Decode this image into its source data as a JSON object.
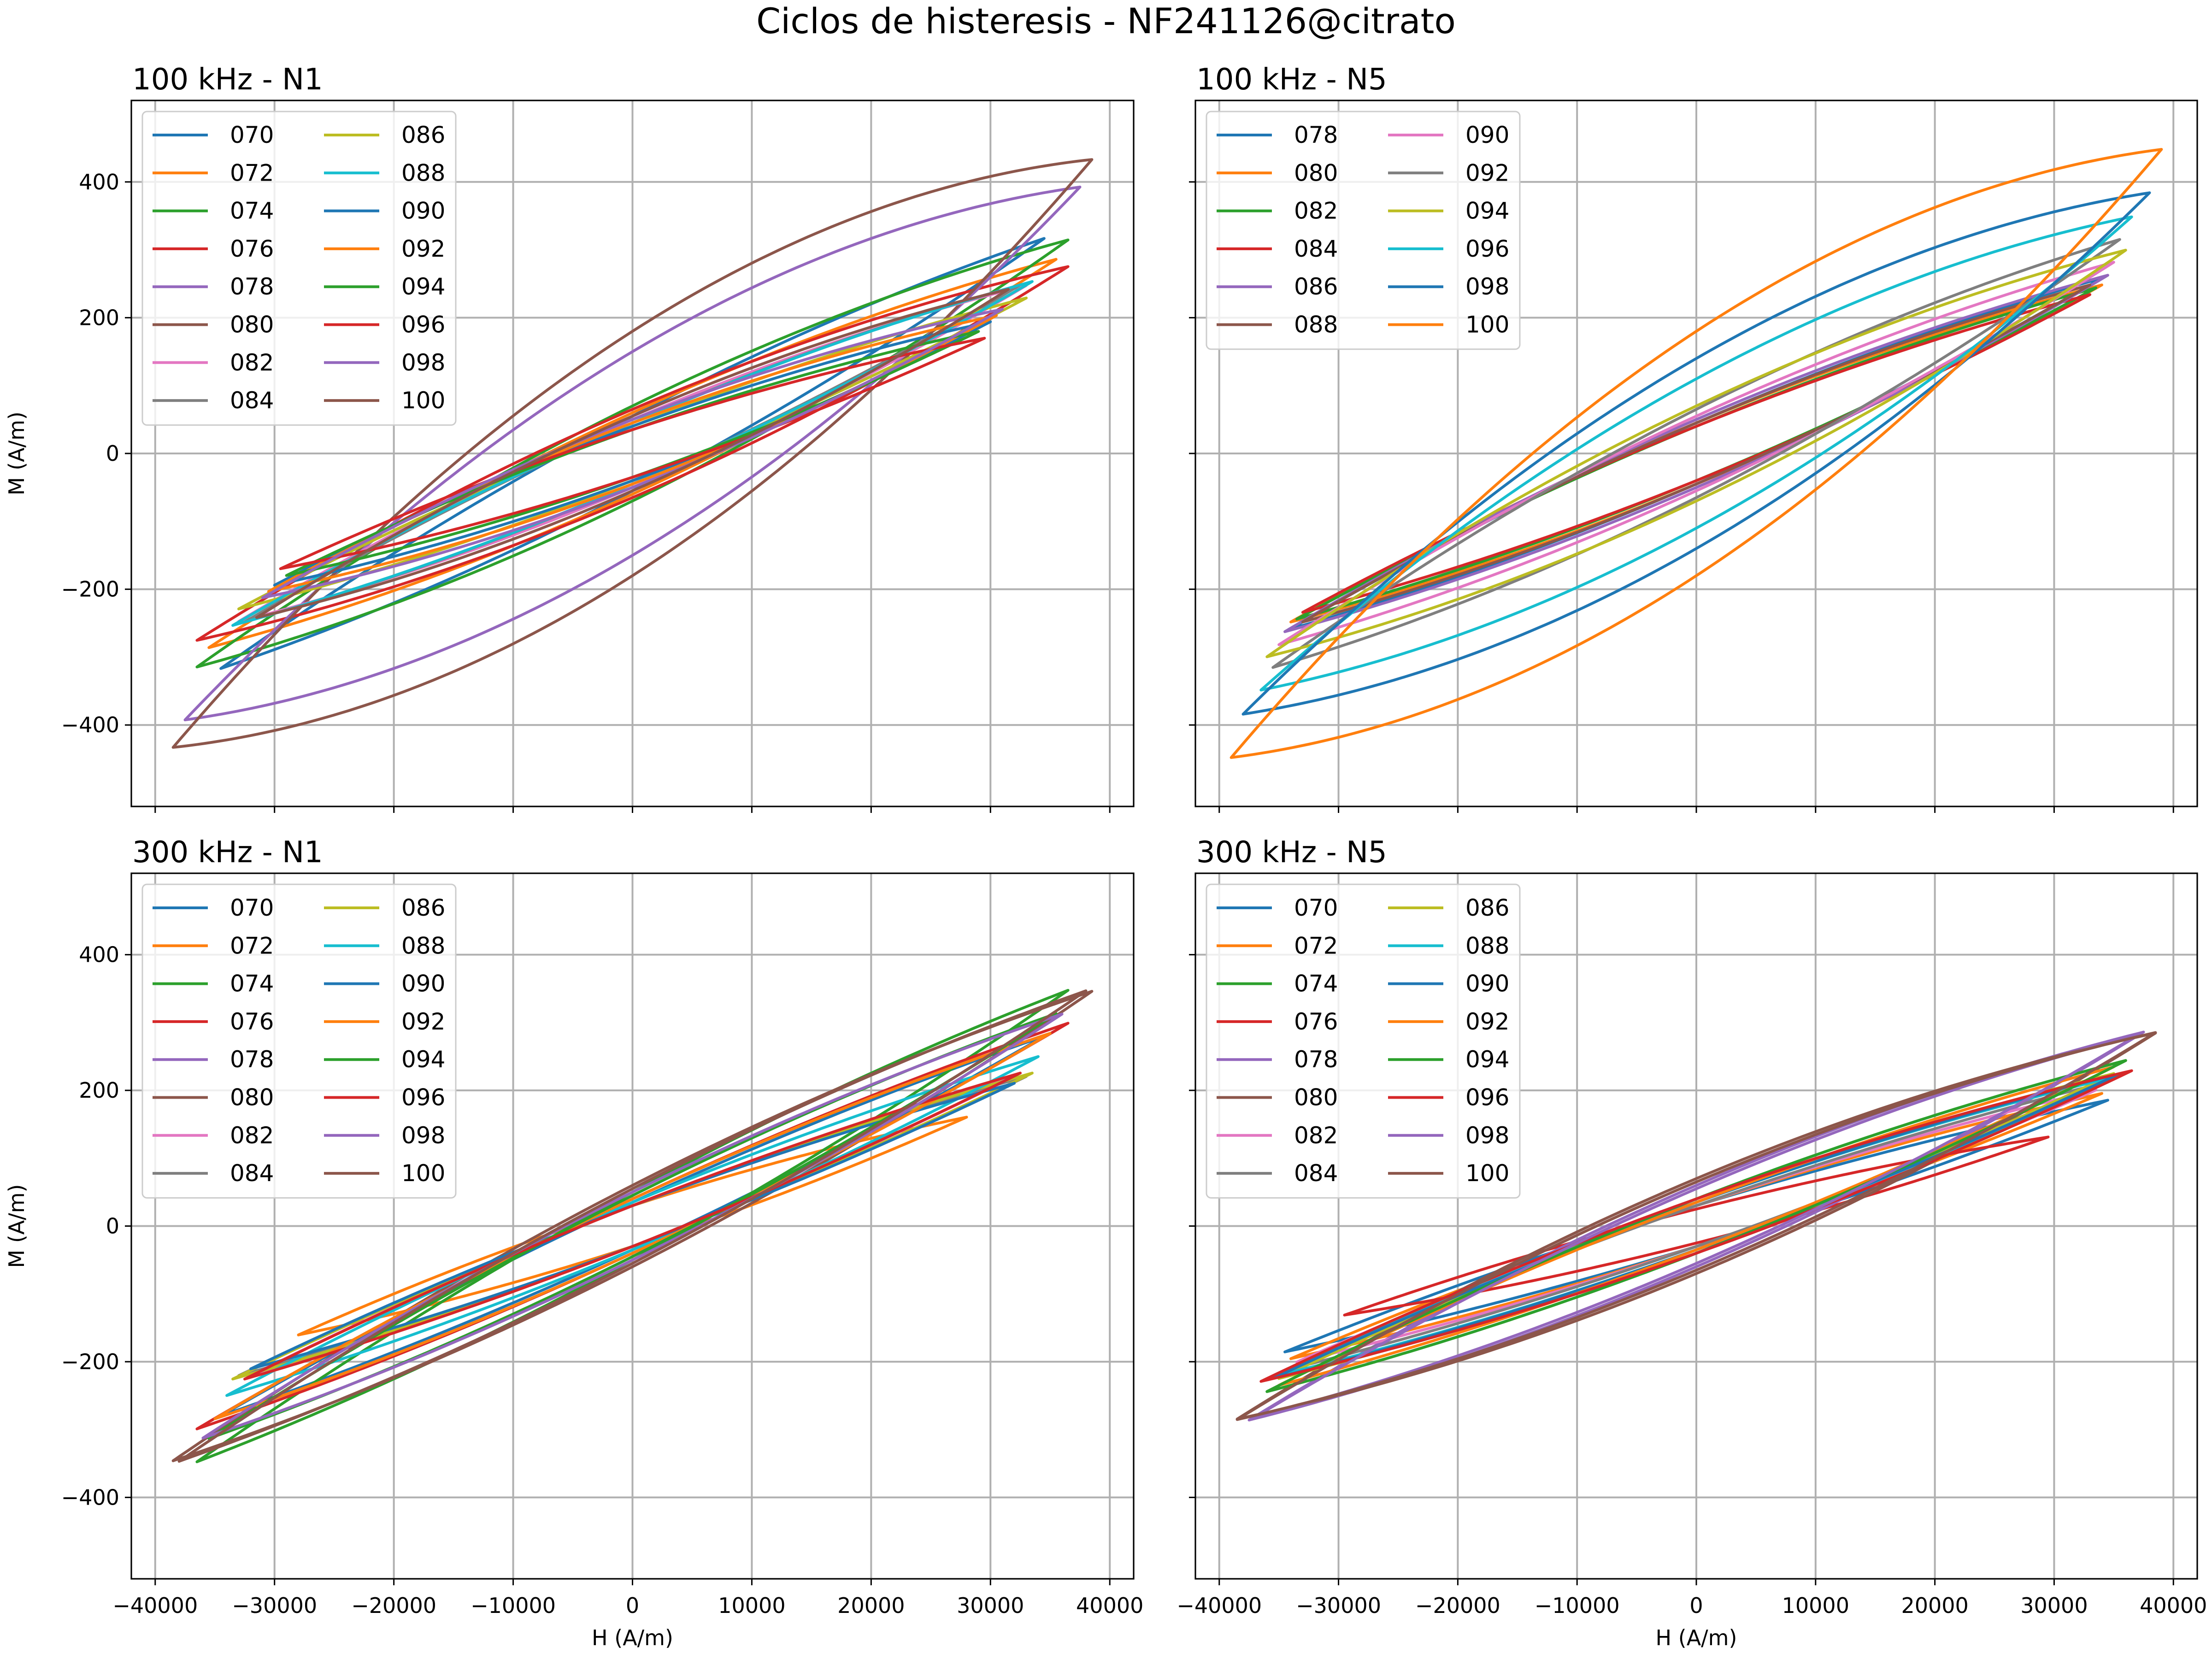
{
  "figure": {
    "suptitle": "Ciclos de histeresis - NF241126@citrato"
  },
  "colors": [
    "#1f77b4",
    "#ff7f0e",
    "#2ca02c",
    "#d62728",
    "#9467bd",
    "#8c564b",
    "#e377c2",
    "#7f7f7f",
    "#bcbd22",
    "#17becf"
  ],
  "chart_data": [
    {
      "type": "line",
      "title": "100 kHz - N1",
      "xlabel": "",
      "ylabel": "M (A/m)",
      "xlim": [
        -42000,
        42000
      ],
      "ylim": [
        -520,
        520
      ],
      "xticks": [
        -40000,
        -30000,
        -20000,
        -10000,
        0,
        10000,
        20000,
        30000,
        40000
      ],
      "yticks": [
        -400,
        -200,
        0,
        200,
        400
      ],
      "x_tick_labels_shown": false,
      "y_tick_labels_shown": true,
      "grid": true,
      "legend": "upper-left, 2 columns",
      "series": [
        {
          "name": "070",
          "Hmax": 34500,
          "Mmax": 325,
          "Mr": 55
        },
        {
          "name": "072",
          "Hmax": 35500,
          "Mmax": 295,
          "Mr": 60
        },
        {
          "name": "074",
          "Hmax": 36500,
          "Mmax": 325,
          "Mr": 70
        },
        {
          "name": "076",
          "Hmax": 36500,
          "Mmax": 285,
          "Mr": 65
        },
        {
          "name": "078",
          "Hmax": 37500,
          "Mmax": 415,
          "Mr": 150
        },
        {
          "name": "080",
          "Hmax": 38500,
          "Mmax": 460,
          "Mr": 180
        },
        {
          "name": "082",
          "Hmax": 33000,
          "Mmax": 255,
          "Mr": 50
        },
        {
          "name": "084",
          "Hmax": 32500,
          "Mmax": 255,
          "Mr": 45
        },
        {
          "name": "086",
          "Hmax": 33000,
          "Mmax": 235,
          "Mr": 40
        },
        {
          "name": "088",
          "Hmax": 33500,
          "Mmax": 260,
          "Mr": 45
        },
        {
          "name": "090",
          "Hmax": 30000,
          "Mmax": 200,
          "Mr": 40
        },
        {
          "name": "092",
          "Hmax": 30500,
          "Mmax": 210,
          "Mr": 45
        },
        {
          "name": "094",
          "Hmax": 29000,
          "Mmax": 185,
          "Mr": 35
        },
        {
          "name": "096",
          "Hmax": 29500,
          "Mmax": 175,
          "Mr": 35
        },
        {
          "name": "098",
          "Hmax": 31000,
          "Mmax": 220,
          "Mr": 50
        },
        {
          "name": "100",
          "Hmax": 31500,
          "Mmax": 250,
          "Mr": 55
        }
      ]
    },
    {
      "type": "line",
      "title": "100 kHz - N5",
      "xlabel": "",
      "ylabel": "",
      "xlim": [
        -42000,
        42000
      ],
      "ylim": [
        -520,
        520
      ],
      "xticks": [
        -40000,
        -30000,
        -20000,
        -10000,
        0,
        10000,
        20000,
        30000,
        40000
      ],
      "yticks": [
        -400,
        -200,
        0,
        200,
        400
      ],
      "x_tick_labels_shown": false,
      "y_tick_labels_shown": false,
      "grid": true,
      "legend": "upper-left, 2 columns",
      "series": [
        {
          "name": "078",
          "Hmax": 34000,
          "Mmax": 265,
          "Mr": 45
        },
        {
          "name": "080",
          "Hmax": 34000,
          "Mmax": 255,
          "Mr": 45
        },
        {
          "name": "082",
          "Hmax": 33500,
          "Mmax": 250,
          "Mr": 40
        },
        {
          "name": "084",
          "Hmax": 33000,
          "Mmax": 240,
          "Mr": 40
        },
        {
          "name": "086",
          "Hmax": 34500,
          "Mmax": 270,
          "Mr": 50
        },
        {
          "name": "088",
          "Hmax": 33000,
          "Mmax": 255,
          "Mr": 45
        },
        {
          "name": "090",
          "Hmax": 35000,
          "Mmax": 290,
          "Mr": 55
        },
        {
          "name": "092",
          "Hmax": 35500,
          "Mmax": 325,
          "Mr": 65
        },
        {
          "name": "094",
          "Hmax": 36000,
          "Mmax": 310,
          "Mr": 70
        },
        {
          "name": "096",
          "Hmax": 36500,
          "Mmax": 365,
          "Mr": 110
        },
        {
          "name": "098",
          "Hmax": 38000,
          "Mmax": 405,
          "Mr": 140
        },
        {
          "name": "100",
          "Hmax": 39000,
          "Mmax": 475,
          "Mr": 180
        }
      ]
    },
    {
      "type": "line",
      "title": "300 kHz - N1",
      "xlabel": "H (A/m)",
      "ylabel": "M (A/m)",
      "xlim": [
        -42000,
        42000
      ],
      "ylim": [
        -520,
        520
      ],
      "xticks": [
        -40000,
        -30000,
        -20000,
        -10000,
        0,
        10000,
        20000,
        30000,
        40000
      ],
      "yticks": [
        -400,
        -200,
        0,
        200,
        400
      ],
      "x_tick_labels_shown": true,
      "y_tick_labels_shown": true,
      "grid": true,
      "legend": "upper-left, 2 columns",
      "series": [
        {
          "name": "070",
          "Hmax": 34500,
          "Mmax": 285,
          "Mr": 35
        },
        {
          "name": "072",
          "Hmax": 28000,
          "Mmax": 165,
          "Mr": 30
        },
        {
          "name": "074",
          "Hmax": 36500,
          "Mmax": 355,
          "Mr": 50
        },
        {
          "name": "076",
          "Hmax": 36500,
          "Mmax": 305,
          "Mr": 40
        },
        {
          "name": "078",
          "Hmax": 35000,
          "Mmax": 290,
          "Mr": 40
        },
        {
          "name": "080",
          "Hmax": 38500,
          "Mmax": 355,
          "Mr": 60
        },
        {
          "name": "082",
          "Hmax": 32000,
          "Mmax": 225,
          "Mr": 30
        },
        {
          "name": "084",
          "Hmax": 33000,
          "Mmax": 225,
          "Mr": 30
        },
        {
          "name": "086",
          "Hmax": 33500,
          "Mmax": 230,
          "Mr": 30
        },
        {
          "name": "088",
          "Hmax": 34000,
          "Mmax": 255,
          "Mr": 35
        },
        {
          "name": "090",
          "Hmax": 32000,
          "Mmax": 215,
          "Mr": 30
        },
        {
          "name": "092",
          "Hmax": 35000,
          "Mmax": 290,
          "Mr": 40
        },
        {
          "name": "094",
          "Hmax": 35500,
          "Mmax": 320,
          "Mr": 45
        },
        {
          "name": "096",
          "Hmax": 32500,
          "Mmax": 230,
          "Mr": 30
        },
        {
          "name": "098",
          "Hmax": 36000,
          "Mmax": 320,
          "Mr": 50
        },
        {
          "name": "100",
          "Hmax": 38000,
          "Mmax": 355,
          "Mr": 55
        }
      ]
    },
    {
      "type": "line",
      "title": "300 kHz - N5",
      "xlabel": "H (A/m)",
      "ylabel": "",
      "xlim": [
        -42000,
        42000
      ],
      "ylim": [
        -520,
        520
      ],
      "xticks": [
        -40000,
        -30000,
        -20000,
        -10000,
        0,
        10000,
        20000,
        30000,
        40000
      ],
      "yticks": [
        -400,
        -200,
        0,
        200,
        400
      ],
      "x_tick_labels_shown": true,
      "y_tick_labels_shown": false,
      "grid": true,
      "legend": "upper-left, 2 columns",
      "series": [
        {
          "name": "070",
          "Hmax": 34500,
          "Mmax": 190,
          "Mr": 30
        },
        {
          "name": "072",
          "Hmax": 34000,
          "Mmax": 200,
          "Mr": 30
        },
        {
          "name": "074",
          "Hmax": 36000,
          "Mmax": 250,
          "Mr": 40
        },
        {
          "name": "076",
          "Hmax": 29500,
          "Mmax": 135,
          "Mr": 25
        },
        {
          "name": "078",
          "Hmax": 37500,
          "Mmax": 295,
          "Mr": 60
        },
        {
          "name": "080",
          "Hmax": 38500,
          "Mmax": 295,
          "Mr": 70
        },
        {
          "name": "082",
          "Hmax": 33500,
          "Mmax": 205,
          "Mr": 30
        },
        {
          "name": "084",
          "Hmax": 34000,
          "Mmax": 215,
          "Mr": 30
        },
        {
          "name": "086",
          "Hmax": 35000,
          "Mmax": 230,
          "Mr": 35
        },
        {
          "name": "088",
          "Hmax": 35000,
          "Mmax": 225,
          "Mr": 35
        },
        {
          "name": "090",
          "Hmax": 35500,
          "Mmax": 230,
          "Mr": 35
        },
        {
          "name": "092",
          "Hmax": 35000,
          "Mmax": 240,
          "Mr": 35
        },
        {
          "name": "094",
          "Hmax": 36000,
          "Mmax": 250,
          "Mr": 40
        },
        {
          "name": "096",
          "Hmax": 36500,
          "Mmax": 235,
          "Mr": 40
        },
        {
          "name": "098",
          "Hmax": 37000,
          "Mmax": 290,
          "Mr": 55
        },
        {
          "name": "100",
          "Hmax": 38500,
          "Mmax": 295,
          "Mr": 65
        }
      ]
    }
  ]
}
